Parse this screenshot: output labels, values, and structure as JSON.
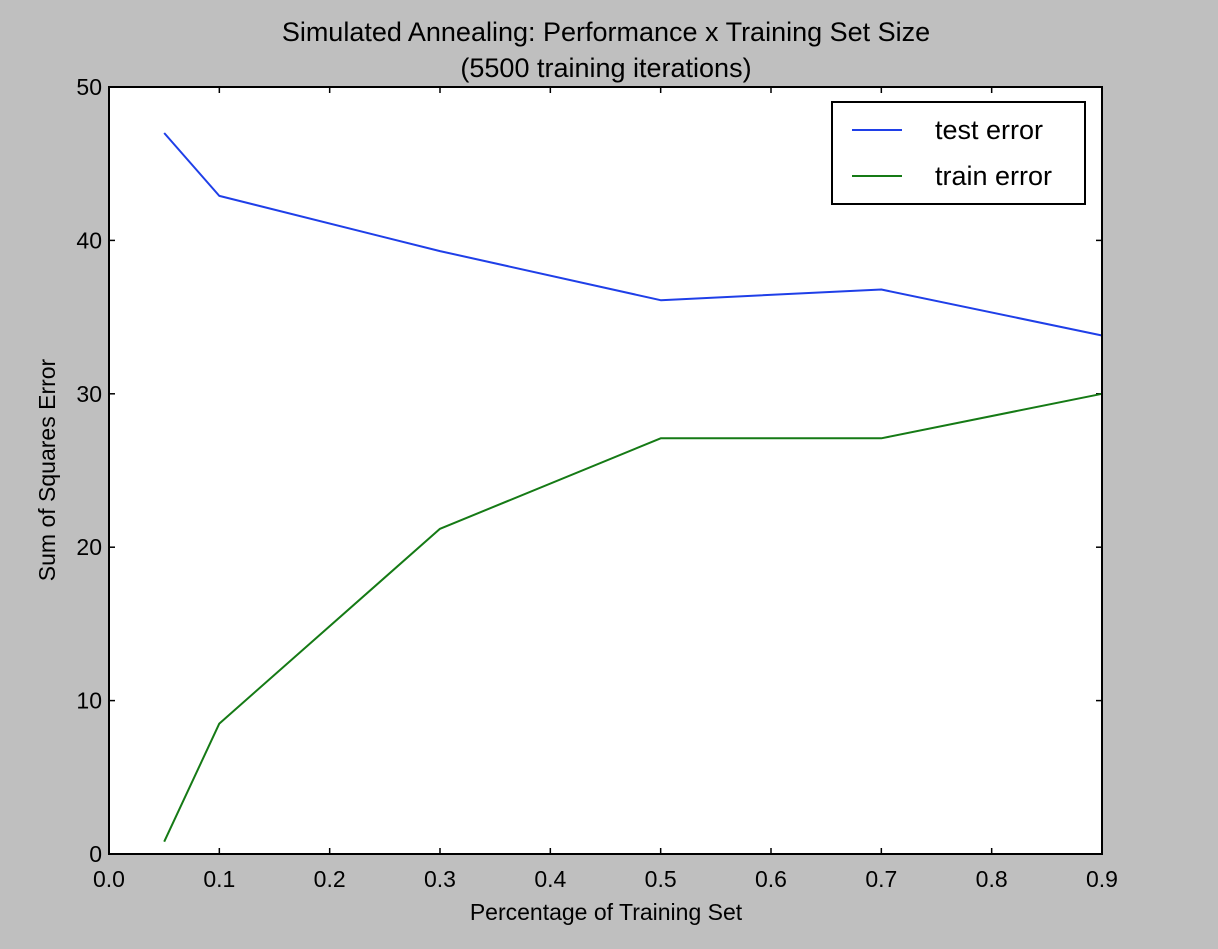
{
  "chart_data": {
    "type": "line",
    "title": "Simulated Annealing: Performance x Training Set Size",
    "subtitle": "(5500 training iterations)",
    "xlabel": "Percentage of Training Set",
    "ylabel": "Sum of Squares Error",
    "xlim": [
      0.0,
      0.9
    ],
    "ylim": [
      0,
      50
    ],
    "xticks": [
      "0.0",
      "0.1",
      "0.2",
      "0.3",
      "0.4",
      "0.5",
      "0.6",
      "0.7",
      "0.8",
      "0.9"
    ],
    "yticks": [
      "0",
      "10",
      "20",
      "30",
      "40",
      "50"
    ],
    "grid": false,
    "legend": "top-right",
    "series": [
      {
        "name": "test error",
        "color": "#1f3fe8",
        "x": [
          0.05,
          0.1,
          0.3,
          0.5,
          0.7,
          0.9
        ],
        "y": [
          47.0,
          42.9,
          39.3,
          36.1,
          36.8,
          33.8
        ]
      },
      {
        "name": "train error",
        "color": "#157a15",
        "x": [
          0.05,
          0.1,
          0.3,
          0.5,
          0.7,
          0.9
        ],
        "y": [
          0.8,
          8.5,
          21.2,
          27.1,
          27.1,
          30.0
        ]
      }
    ]
  },
  "colors": {
    "background": "#bfbfbf",
    "plot_area": "#ffffff",
    "frame": "#000000"
  }
}
